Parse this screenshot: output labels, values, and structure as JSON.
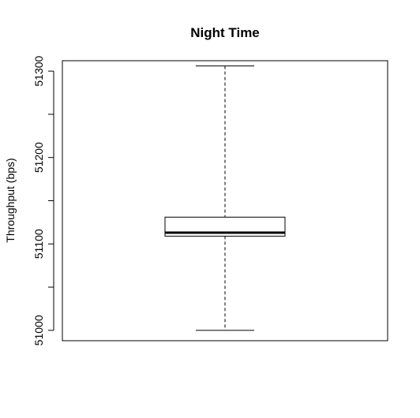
{
  "chart_data": {
    "type": "box",
    "title": "Night Time",
    "xlabel": "",
    "ylabel": "Throughput (bps)",
    "ylim": [
      50988,
      51312
    ],
    "yticks": [
      51000,
      51100,
      51200,
      51300
    ],
    "yticks_minor": [
      51050,
      51150,
      51250
    ],
    "ytick_labels": [
      "51000",
      "51100",
      "51200",
      "51300"
    ],
    "grid": false,
    "legend": "none",
    "boxes": [
      {
        "min": 51000,
        "q1": 51109,
        "median": 51113,
        "q3": 51131,
        "max": 51306
      }
    ],
    "colors": {
      "line": "#000000",
      "background": "#ffffff"
    }
  }
}
